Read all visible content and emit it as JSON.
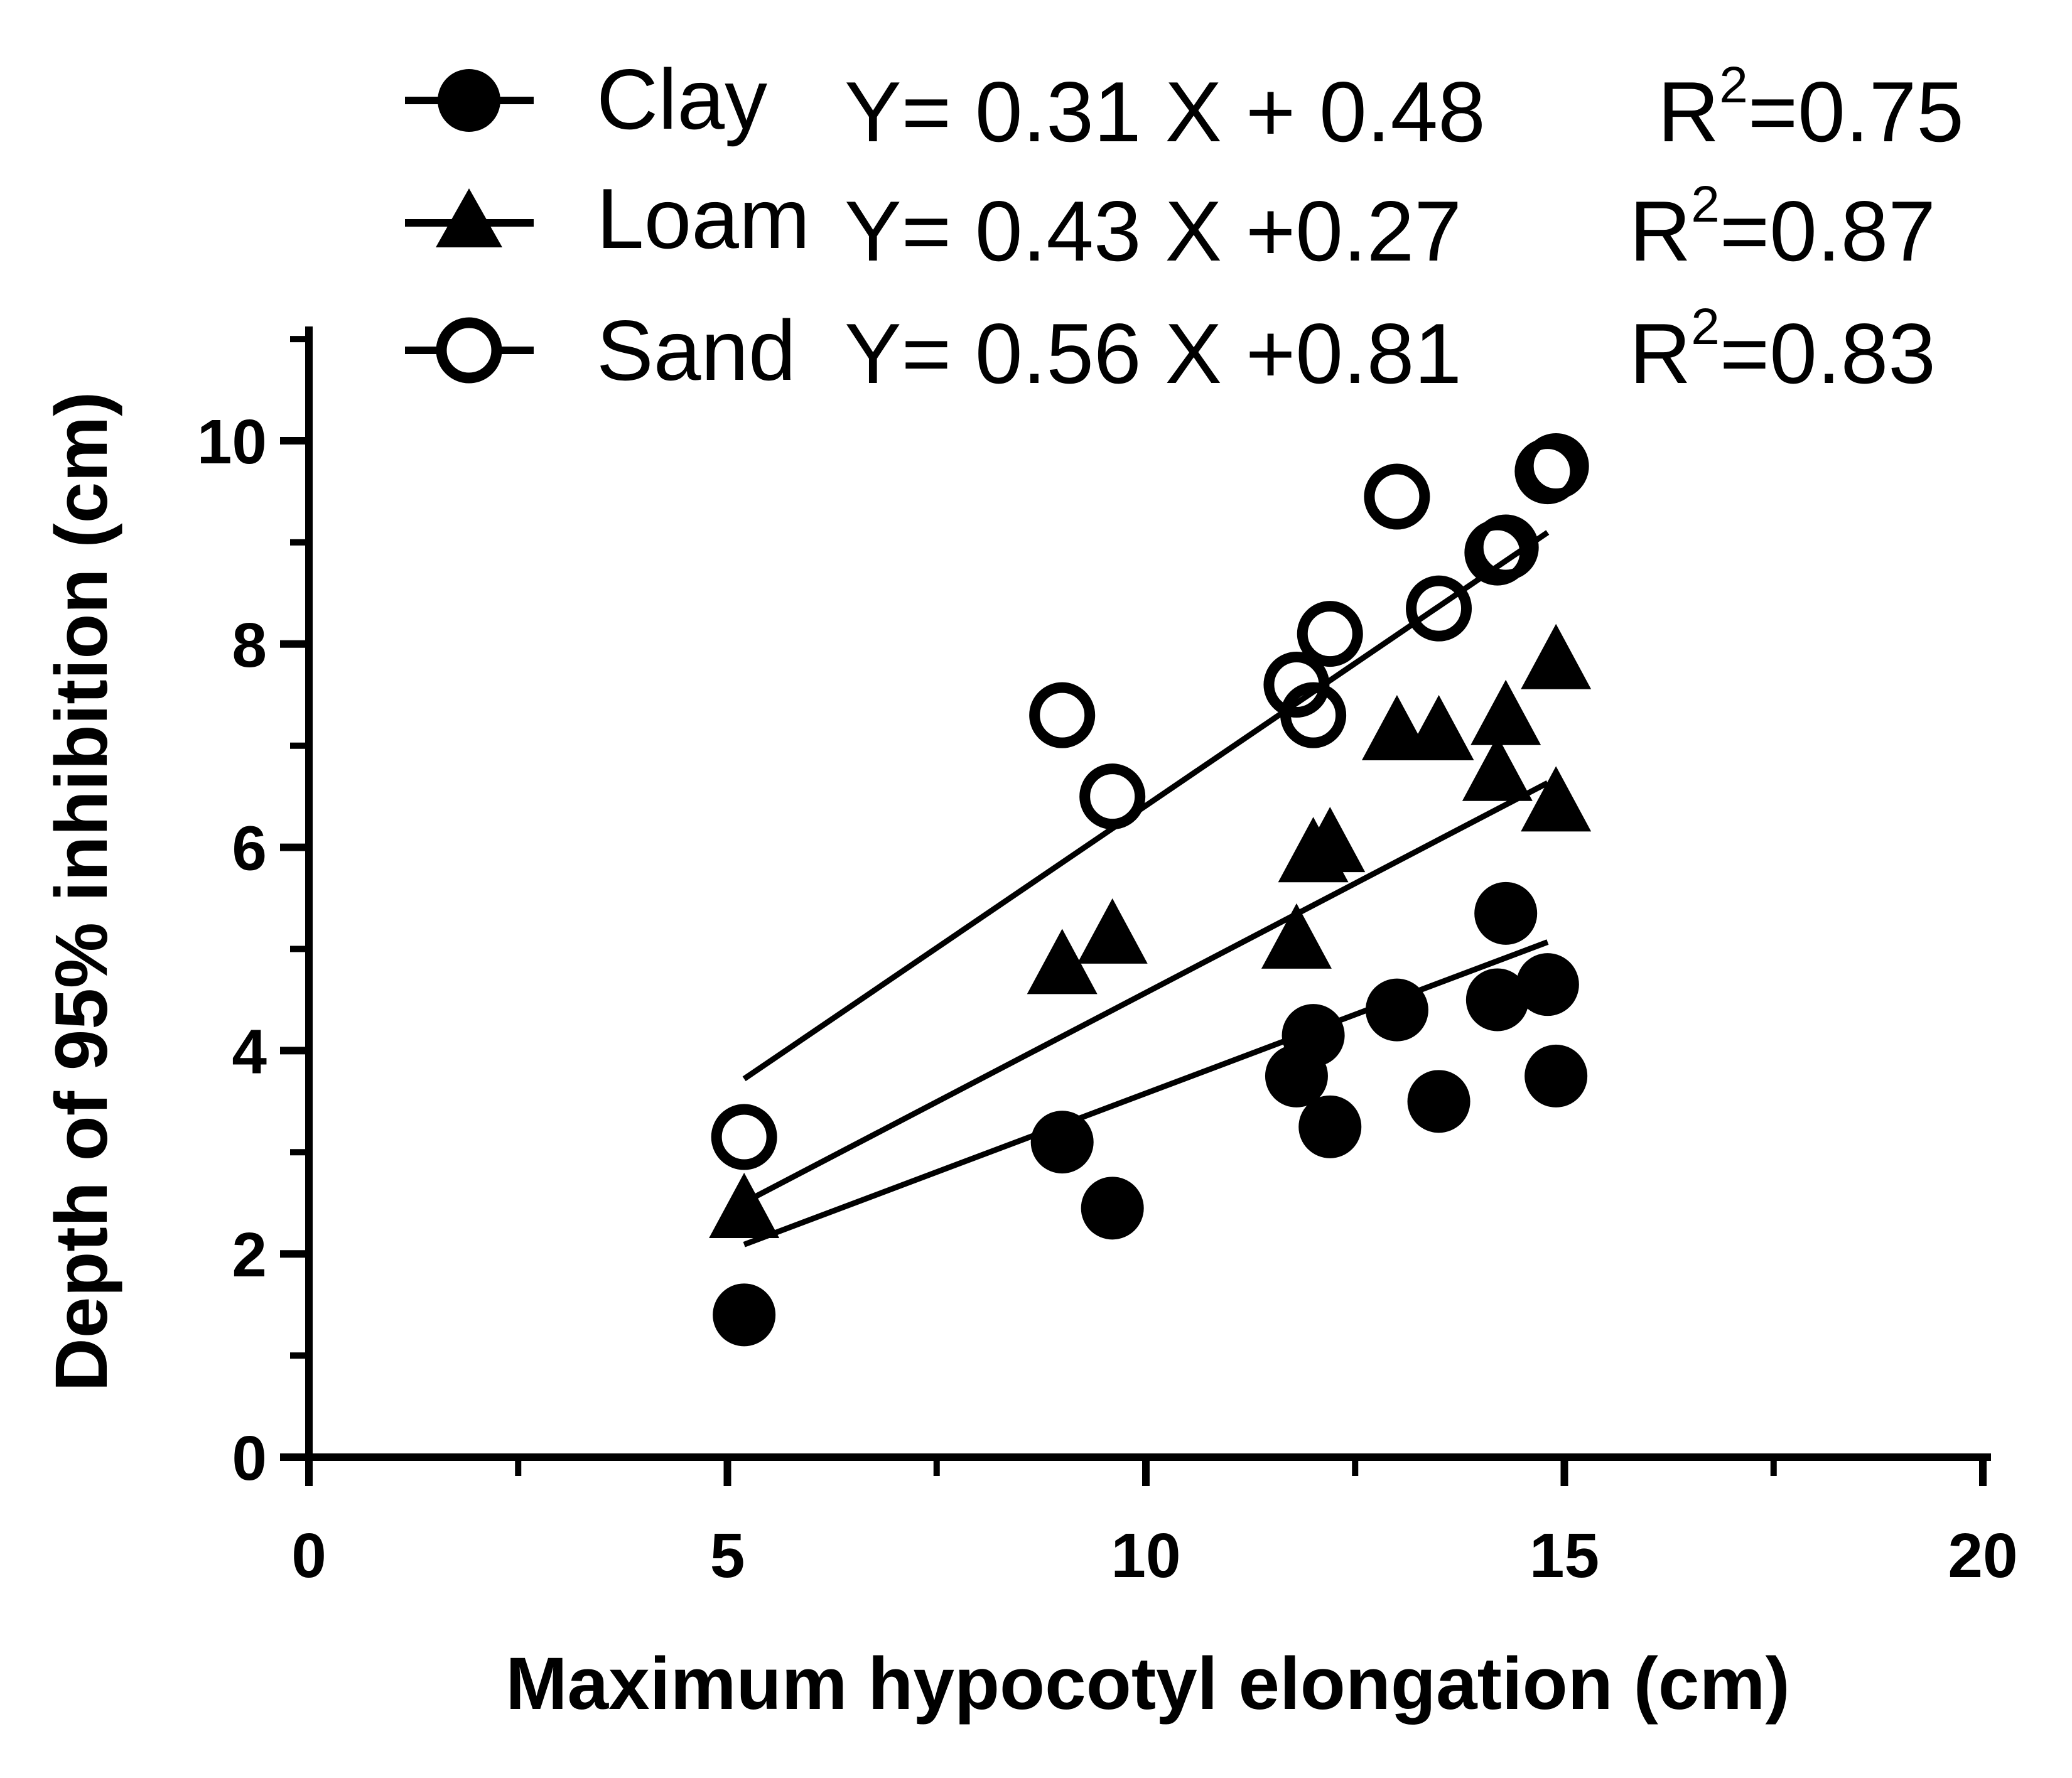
{
  "chart_data": {
    "type": "scatter",
    "xlabel": "Maximum hypocotyl elongation (cm)",
    "ylabel": "Depth of 95% inhibition (cm)",
    "xlim": [
      0,
      20
    ],
    "ylim": [
      0,
      11
    ],
    "x_ticks": [
      0,
      5,
      10,
      15,
      20
    ],
    "y_ticks": [
      0,
      2,
      4,
      6,
      8,
      10
    ],
    "x_tick_labels": [
      "0",
      "5",
      "10",
      "15",
      "20"
    ],
    "y_tick_labels": [
      "0",
      "2",
      "4",
      "6",
      "8",
      "10"
    ],
    "grid": false,
    "legend_position": "top",
    "series": [
      {
        "name": "Clay",
        "marker": "filled-circle",
        "equation": "Y= 0.31 X + 0.48",
        "r2_prefix": "R",
        "r2_exp": "2",
        "r2_value": "=0.75",
        "slope": 0.31,
        "intercept": 0.48,
        "fit_range": [
          5.2,
          14.8
        ],
        "x": [
          5.2,
          9.0,
          9.6,
          11.8,
          12.0,
          12.2,
          13.0,
          13.5,
          14.2,
          14.3,
          14.8,
          14.9
        ],
        "y": [
          1.4,
          3.1,
          2.45,
          3.75,
          4.15,
          3.25,
          4.4,
          3.5,
          4.5,
          5.35,
          4.65,
          3.75
        ]
      },
      {
        "name": "Loam",
        "marker": "filled-triangle",
        "equation": "Y= 0.43 X +0.27",
        "r2_prefix": "R",
        "r2_exp": "2",
        "r2_value": "=0.87",
        "slope": 0.43,
        "intercept": 0.27,
        "fit_range": [
          5.2,
          14.8
        ],
        "x": [
          5.2,
          9.0,
          9.6,
          11.8,
          12.0,
          12.2,
          13.0,
          13.5,
          14.2,
          14.3,
          14.9,
          14.9
        ],
        "y": [
          2.4,
          4.8,
          5.1,
          5.05,
          5.9,
          6.0,
          7.1,
          7.1,
          6.7,
          7.25,
          7.8,
          6.4
        ]
      },
      {
        "name": "Sand",
        "marker": "open-circle",
        "equation": "Y= 0.56 X +0.81",
        "r2_prefix": "R",
        "r2_exp": "2",
        "r2_value": "=0.83",
        "slope": 0.56,
        "intercept": 0.81,
        "fit_range": [
          5.2,
          14.8
        ],
        "x": [
          5.2,
          9.0,
          9.6,
          11.8,
          12.0,
          12.2,
          13.0,
          13.5,
          14.2,
          14.3,
          14.8,
          14.9
        ],
        "y": [
          3.15,
          7.3,
          6.5,
          7.6,
          7.3,
          8.1,
          9.45,
          8.35,
          8.9,
          8.95,
          9.7,
          9.75
        ]
      }
    ]
  }
}
